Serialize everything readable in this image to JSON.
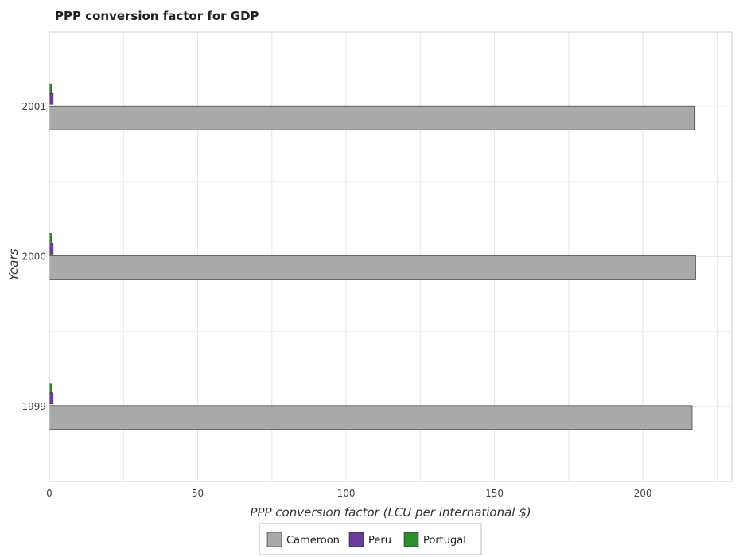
{
  "chart_data": {
    "type": "bar",
    "orientation": "horizontal",
    "title": "PPP conversion factor for GDP",
    "xlabel": "PPP conversion factor (LCU per international $)",
    "ylabel": "Years",
    "categories": [
      "1999",
      "2000",
      "2001"
    ],
    "xlim": [
      0,
      230
    ],
    "xticks": [
      0,
      50,
      100,
      150,
      200
    ],
    "grid": true,
    "legend_position": "bottom-center",
    "series": [
      {
        "name": "Cameroon",
        "color": "#aaaaaa",
        "values": [
          216.6,
          217.8,
          217.6
        ]
      },
      {
        "name": "Peru",
        "color": "#6a3d9a",
        "values": [
          1.29,
          1.3,
          1.3
        ]
      },
      {
        "name": "Portugal",
        "color": "#2e8b2e",
        "values": [
          0.67,
          0.67,
          0.68
        ]
      }
    ]
  }
}
